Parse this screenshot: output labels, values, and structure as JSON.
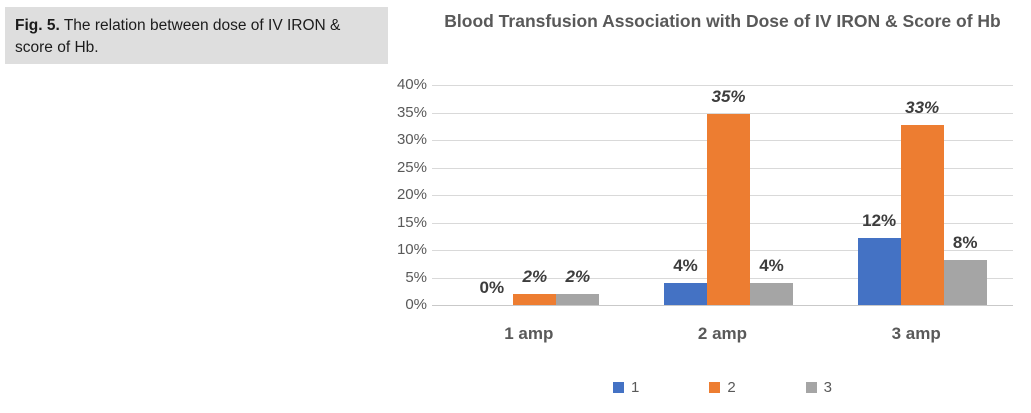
{
  "caption": {
    "label": "Fig. 5.",
    "text": " The relation between dose of IV IRON & score of Hb."
  },
  "chart_data": {
    "type": "bar",
    "title": "Blood Transfusion Association with Dose of IV IRON & Score of Hb",
    "categories": [
      "1 amp",
      "2 amp",
      "3 amp"
    ],
    "series": [
      {
        "name": "1",
        "color": "#4472C4",
        "values": [
          0,
          4,
          12.2
        ],
        "labels": [
          "0%",
          "4%",
          "12%"
        ],
        "italic": [
          false,
          false,
          false
        ]
      },
      {
        "name": "2",
        "color": "#ED7D31",
        "values": [
          2,
          34.7,
          32.7
        ],
        "labels": [
          "2%",
          "35%",
          "33%"
        ],
        "italic": [
          true,
          true,
          true
        ]
      },
      {
        "name": "3",
        "color": "#A5A5A5",
        "values": [
          2,
          4,
          8.2
        ],
        "labels": [
          "2%",
          "4%",
          "8%"
        ],
        "italic": [
          true,
          false,
          false
        ]
      }
    ],
    "ylabel": "",
    "xlabel": "",
    "ylim": [
      0,
      40
    ],
    "ytick_step": 5,
    "ytick_labels": [
      "0%",
      "5%",
      "10%",
      "15%",
      "20%",
      "25%",
      "30%",
      "35%",
      "40%"
    ],
    "grid": true,
    "legend_position": "bottom",
    "colors": {
      "title_text": "#595959",
      "axis_text": "#595959",
      "data_label_text": "#3d3d3d",
      "gridline": "#d9d9d9",
      "caption_background": "#dedede"
    }
  }
}
